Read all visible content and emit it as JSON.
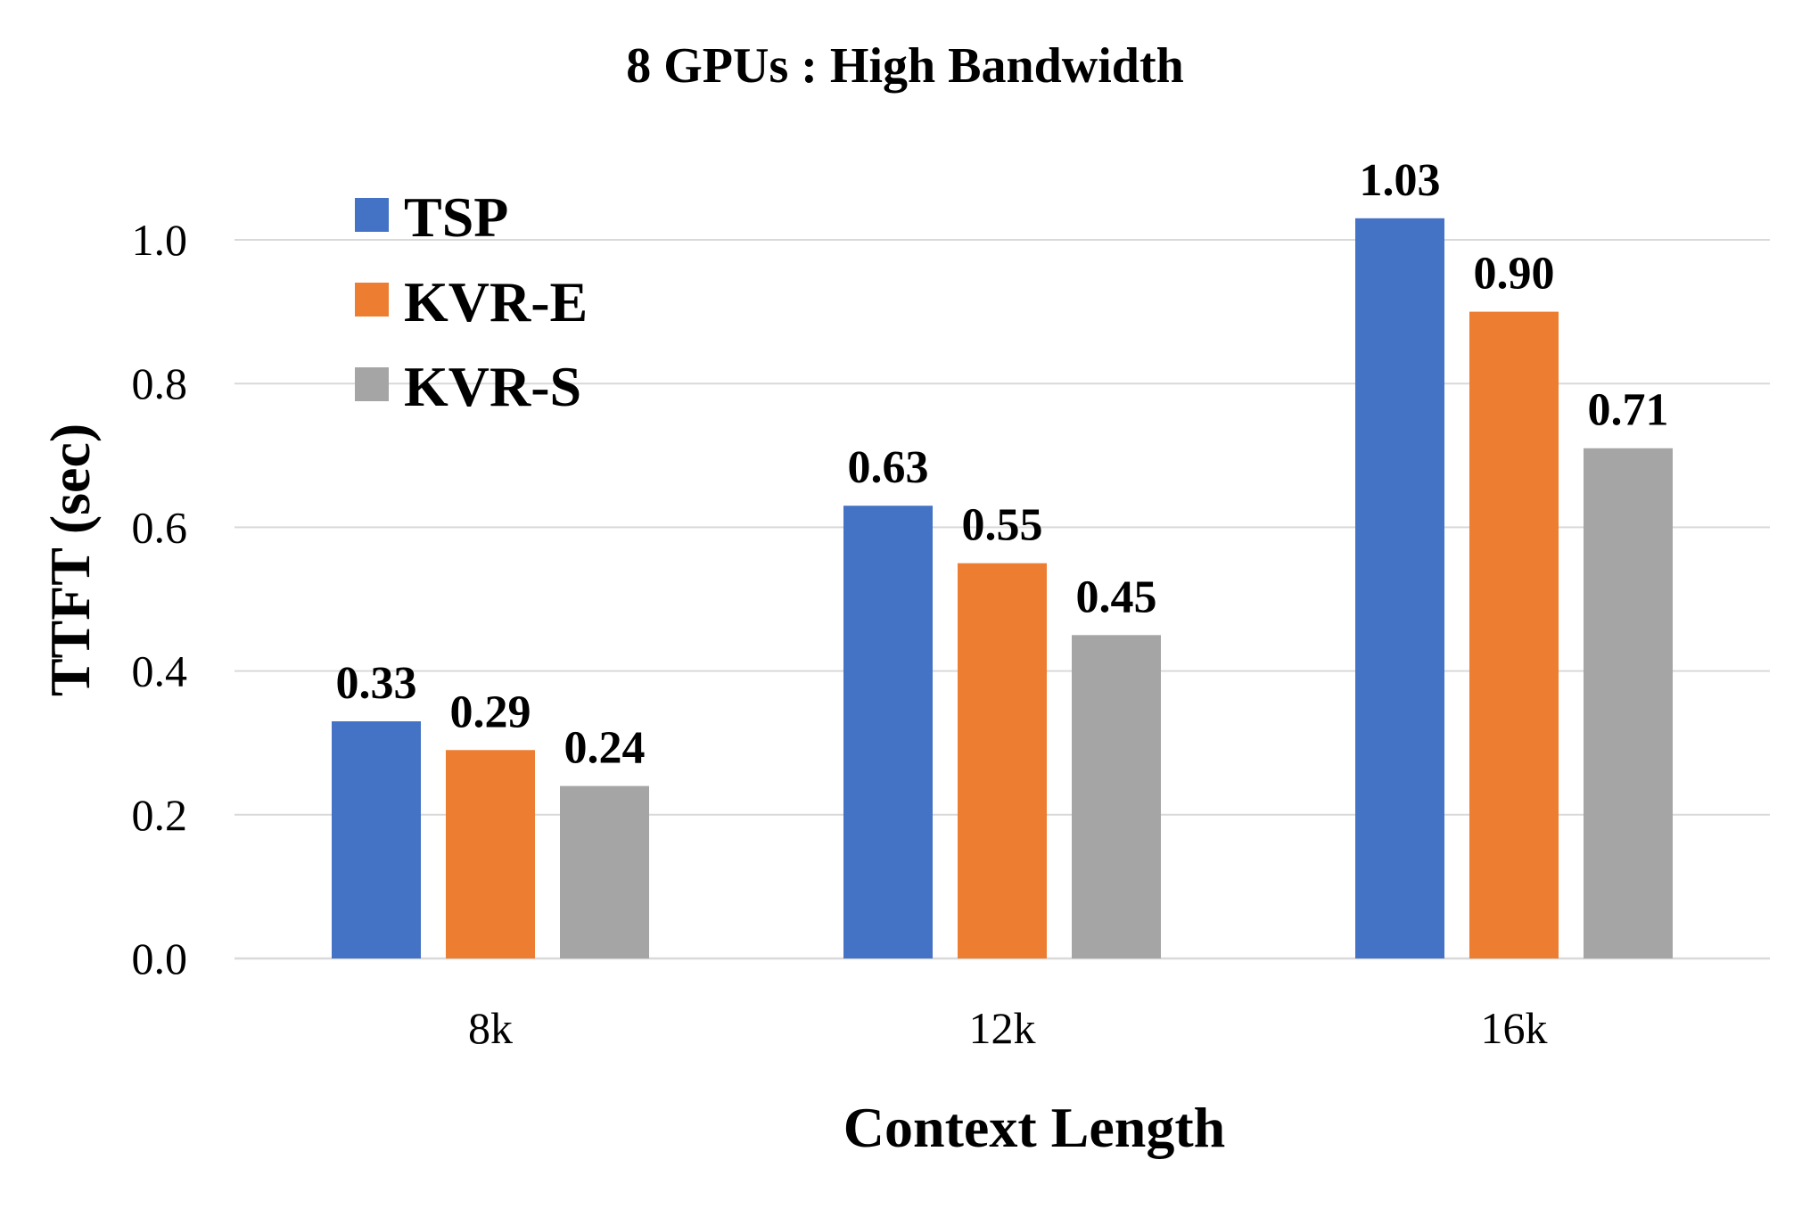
{
  "chart_data": {
    "type": "bar",
    "title": "8 GPUs : High Bandwidth",
    "xlabel": "Context Length",
    "ylabel": "TTFT (sec)",
    "categories": [
      "8k",
      "12k",
      "16k"
    ],
    "ylim": [
      0,
      1.0
    ],
    "yticks": [
      0.0,
      0.2,
      0.4,
      0.6,
      0.8,
      1.0
    ],
    "ytick_labels": [
      "0.0",
      "0.2",
      "0.4",
      "0.6",
      "0.8",
      "1.0"
    ],
    "grid": true,
    "legend_position": "top-left",
    "series": [
      {
        "name": "TSP",
        "color": "#4472c4",
        "values": [
          0.33,
          0.63,
          1.03
        ],
        "labels": [
          "0.33",
          "0.63",
          "1.03"
        ]
      },
      {
        "name": "KVR-E",
        "color": "#ed7d31",
        "values": [
          0.29,
          0.55,
          0.9
        ],
        "labels": [
          "0.29",
          "0.55",
          "0.90"
        ]
      },
      {
        "name": "KVR-S",
        "color": "#a5a5a5",
        "values": [
          0.24,
          0.45,
          0.71
        ],
        "labels": [
          "0.24",
          "0.45",
          "0.71"
        ]
      }
    ]
  }
}
